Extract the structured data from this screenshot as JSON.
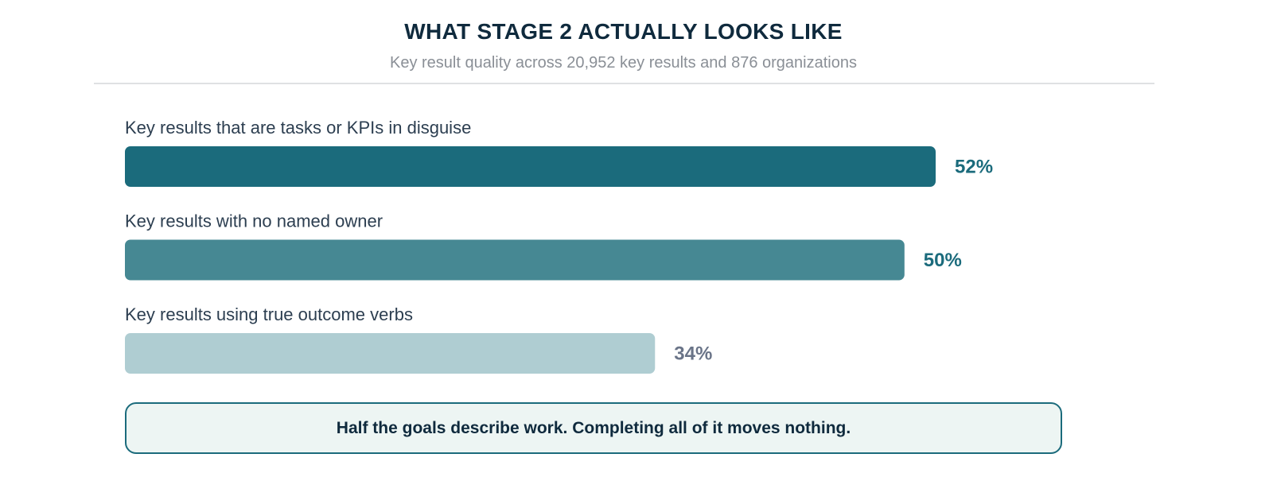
{
  "header": {
    "title": "WHAT STAGE 2 ACTUALLY LOOKS LIKE",
    "subtitle": "Key result quality across 20,952 key results and 876 organizations"
  },
  "chart_data": {
    "type": "bar",
    "orientation": "horizontal",
    "categories": [
      "Key results that are tasks or KPIs in disguise",
      "Key results with no named owner",
      "Key results using true outcome verbs"
    ],
    "values": [
      52,
      50,
      34
    ],
    "value_labels": [
      "52%",
      "50%",
      "34%"
    ],
    "unit": "%",
    "xlim": [
      0,
      100
    ],
    "grid": false,
    "colors": [
      "#1b6b7c",
      "#468893",
      "#afcdd2"
    ],
    "value_colors": [
      "#1b6b7c",
      "#1b6b7c",
      "#6a7488"
    ]
  },
  "callout": {
    "text": "Half the goals describe work. Completing all of it moves nothing."
  }
}
